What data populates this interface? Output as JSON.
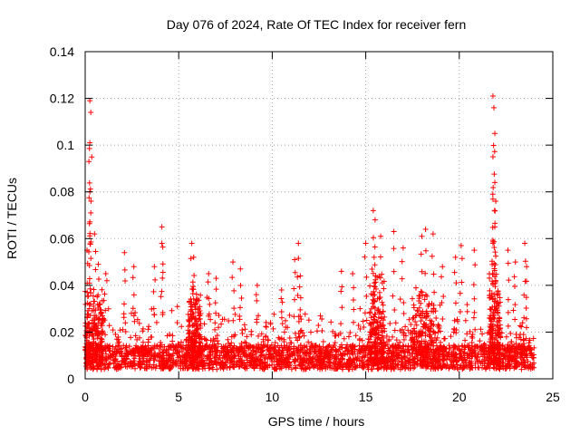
{
  "chart_data": {
    "type": "scatter",
    "title": "Day 076 of 2024, Rate Of TEC Index for receiver fern",
    "xlabel": "GPS time / hours",
    "ylabel": "ROTI / TECUs",
    "xlim": [
      0,
      25
    ],
    "ylim": [
      0,
      0.14
    ],
    "x_ticks": [
      0,
      5,
      10,
      15,
      20,
      25
    ],
    "y_ticks": [
      0,
      0.02,
      0.04,
      0.06,
      0.08,
      0.1,
      0.12,
      0.14
    ],
    "x_tick_labels": [
      "0",
      "5",
      "10",
      "15",
      "20",
      "25"
    ],
    "y_tick_labels": [
      "0",
      "0.02",
      "0.04",
      "0.06",
      "0.08",
      "0.1",
      "0.12",
      "0.14"
    ],
    "grid": true,
    "marker": "+",
    "marker_color": "#ff0000",
    "data_span_hours": [
      0,
      24
    ],
    "baseline_band": [
      0.004,
      0.02
    ],
    "spikes": [
      {
        "x": 0.1,
        "y": 0.055
      },
      {
        "x": 0.25,
        "y": 0.119
      },
      {
        "x": 0.3,
        "y": 0.114
      },
      {
        "x": 0.25,
        "y": 0.101
      },
      {
        "x": 0.2,
        "y": 0.093
      },
      {
        "x": 0.25,
        "y": 0.08
      },
      {
        "x": 0.3,
        "y": 0.071
      },
      {
        "x": 0.5,
        "y": 0.062
      },
      {
        "x": 0.7,
        "y": 0.049
      },
      {
        "x": 1.1,
        "y": 0.045
      },
      {
        "x": 2.1,
        "y": 0.054
      },
      {
        "x": 2.6,
        "y": 0.048
      },
      {
        "x": 3.7,
        "y": 0.048
      },
      {
        "x": 4.1,
        "y": 0.065
      },
      {
        "x": 4.1,
        "y": 0.058
      },
      {
        "x": 5.7,
        "y": 0.058
      },
      {
        "x": 5.8,
        "y": 0.052
      },
      {
        "x": 6.6,
        "y": 0.045
      },
      {
        "x": 7.0,
        "y": 0.043
      },
      {
        "x": 7.9,
        "y": 0.05
      },
      {
        "x": 8.3,
        "y": 0.047
      },
      {
        "x": 9.2,
        "y": 0.04
      },
      {
        "x": 10.5,
        "y": 0.038
      },
      {
        "x": 11.2,
        "y": 0.051
      },
      {
        "x": 11.4,
        "y": 0.058
      },
      {
        "x": 11.5,
        "y": 0.044
      },
      {
        "x": 13.7,
        "y": 0.046
      },
      {
        "x": 14.3,
        "y": 0.045
      },
      {
        "x": 15.0,
        "y": 0.058
      },
      {
        "x": 15.4,
        "y": 0.072
      },
      {
        "x": 15.5,
        "y": 0.068
      },
      {
        "x": 15.8,
        "y": 0.061
      },
      {
        "x": 16.5,
        "y": 0.063
      },
      {
        "x": 17.0,
        "y": 0.056
      },
      {
        "x": 18.0,
        "y": 0.061
      },
      {
        "x": 18.2,
        "y": 0.064
      },
      {
        "x": 18.6,
        "y": 0.062
      },
      {
        "x": 19.1,
        "y": 0.048
      },
      {
        "x": 19.8,
        "y": 0.052
      },
      {
        "x": 20.1,
        "y": 0.057
      },
      {
        "x": 20.8,
        "y": 0.055
      },
      {
        "x": 21.8,
        "y": 0.121
      },
      {
        "x": 21.85,
        "y": 0.116
      },
      {
        "x": 21.9,
        "y": 0.105
      },
      {
        "x": 21.8,
        "y": 0.095
      },
      {
        "x": 21.9,
        "y": 0.084
      },
      {
        "x": 21.95,
        "y": 0.076
      },
      {
        "x": 21.9,
        "y": 0.065
      },
      {
        "x": 21.8,
        "y": 0.058
      },
      {
        "x": 22.6,
        "y": 0.055
      },
      {
        "x": 23.0,
        "y": 0.05
      },
      {
        "x": 23.5,
        "y": 0.058
      },
      {
        "x": 23.6,
        "y": 0.048
      }
    ]
  }
}
